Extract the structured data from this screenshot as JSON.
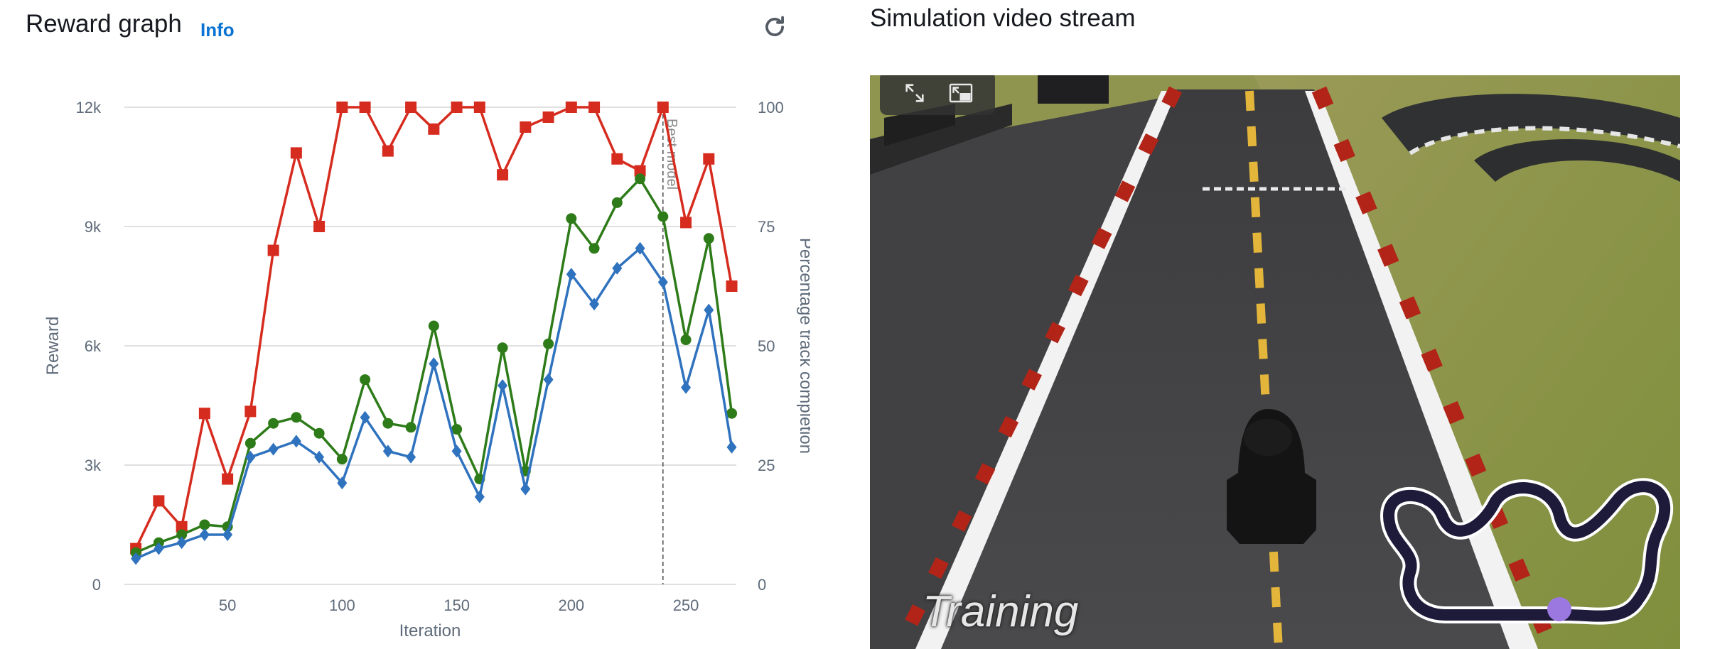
{
  "reward_panel": {
    "title": "Reward graph",
    "info_label": "Info",
    "refresh_icon": "refresh-icon"
  },
  "video_panel": {
    "title": "Simulation video stream",
    "overlay_text": "Training",
    "controls": [
      "expand-icon",
      "picture-in-picture-icon"
    ]
  },
  "colors": {
    "reward_series": "#d62c1f",
    "eval_series": "#2e7b19",
    "completion_series": "#2f72be",
    "grid": "#e0e0e0",
    "axis_text": "#5f6b7a",
    "info_link": "#0972d3"
  },
  "chart_data": {
    "type": "line",
    "xlabel": "Iteration",
    "ylabel": "Reward",
    "y2label": "Percentage track completion",
    "xlim": [
      5,
      272
    ],
    "ylim": [
      0,
      12000
    ],
    "y2lim": [
      0,
      100
    ],
    "x_ticks": [
      "50",
      "100",
      "150",
      "200",
      "250"
    ],
    "x_tick_values": [
      50,
      100,
      150,
      200,
      250
    ],
    "y_ticks": [
      "0",
      "3k",
      "6k",
      "9k",
      "12k"
    ],
    "y_tick_values": [
      0,
      3000,
      6000,
      9000,
      12000
    ],
    "y2_ticks": [
      "0",
      "25",
      "50",
      "75",
      "100"
    ],
    "y2_tick_values": [
      0,
      25,
      50,
      75,
      100
    ],
    "annotation": {
      "label": "Best model",
      "x": 240
    },
    "x": [
      10,
      20,
      30,
      40,
      50,
      60,
      70,
      80,
      90,
      100,
      110,
      120,
      130,
      140,
      150,
      160,
      170,
      180,
      190,
      200,
      210,
      220,
      230,
      240,
      250,
      260,
      270
    ],
    "series": [
      {
        "color_key": "reward_series",
        "marker": "square",
        "values": [
          900,
          2100,
          1450,
          4300,
          2650,
          4350,
          8400,
          10850,
          9000,
          12000,
          12000,
          10900,
          12000,
          11450,
          12000,
          12000,
          10300,
          11500,
          11750,
          12000,
          12000,
          10700,
          10400,
          12000,
          9100,
          10700,
          7500
        ]
      },
      {
        "color_key": "eval_series",
        "marker": "circle",
        "values": [
          800,
          1050,
          1250,
          1500,
          1450,
          3550,
          4050,
          4200,
          3800,
          3150,
          5150,
          4050,
          3950,
          6500,
          3900,
          2650,
          5950,
          2850,
          6050,
          9200,
          8450,
          9600,
          10200,
          9250,
          6150,
          8700,
          4300
        ]
      },
      {
        "color_key": "completion_series",
        "marker": "diamond",
        "values": [
          650,
          900,
          1050,
          1250,
          1250,
          3200,
          3400,
          3600,
          3200,
          2550,
          4200,
          3350,
          3200,
          5550,
          3350,
          2200,
          5000,
          2400,
          5150,
          7800,
          7050,
          7950,
          8450,
          7600,
          4950,
          6900,
          3450
        ]
      }
    ]
  }
}
